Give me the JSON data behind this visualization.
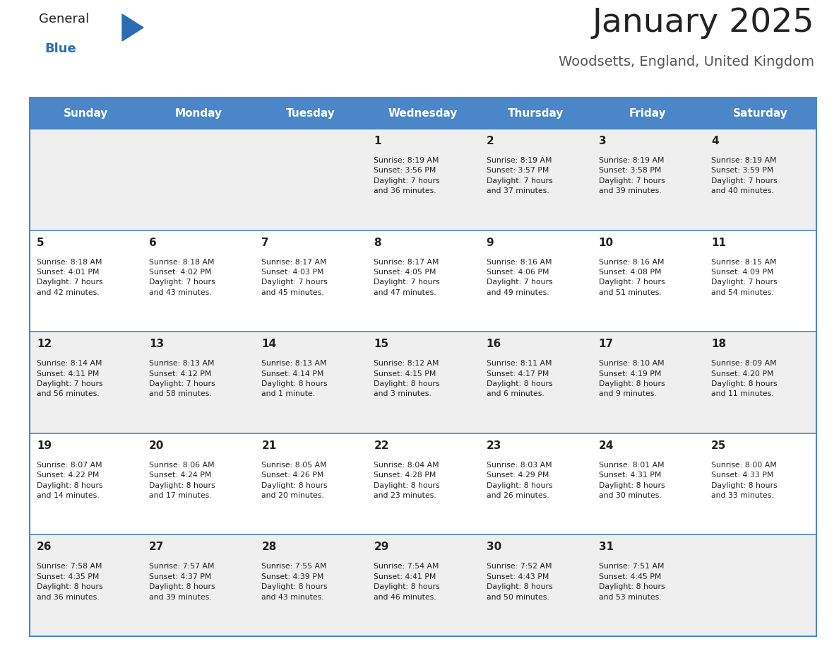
{
  "title": "January 2025",
  "subtitle": "Woodsetts, England, United Kingdom",
  "days_of_week": [
    "Sunday",
    "Monday",
    "Tuesday",
    "Wednesday",
    "Thursday",
    "Friday",
    "Saturday"
  ],
  "header_bg": "#4a86c8",
  "header_text": "#ffffff",
  "row_bg_odd": "#efefef",
  "row_bg_even": "#ffffff",
  "cell_text": "#222222",
  "border_color": "#4a86c8",
  "title_color": "#222222",
  "subtitle_color": "#555555",
  "logo_general_color": "#222222",
  "logo_blue_color": "#2a6db5",
  "weeks": [
    {
      "days": [
        {
          "date": "",
          "info": ""
        },
        {
          "date": "",
          "info": ""
        },
        {
          "date": "",
          "info": ""
        },
        {
          "date": "1",
          "info": "Sunrise: 8:19 AM\nSunset: 3:56 PM\nDaylight: 7 hours\nand 36 minutes."
        },
        {
          "date": "2",
          "info": "Sunrise: 8:19 AM\nSunset: 3:57 PM\nDaylight: 7 hours\nand 37 minutes."
        },
        {
          "date": "3",
          "info": "Sunrise: 8:19 AM\nSunset: 3:58 PM\nDaylight: 7 hours\nand 39 minutes."
        },
        {
          "date": "4",
          "info": "Sunrise: 8:19 AM\nSunset: 3:59 PM\nDaylight: 7 hours\nand 40 minutes."
        }
      ]
    },
    {
      "days": [
        {
          "date": "5",
          "info": "Sunrise: 8:18 AM\nSunset: 4:01 PM\nDaylight: 7 hours\nand 42 minutes."
        },
        {
          "date": "6",
          "info": "Sunrise: 8:18 AM\nSunset: 4:02 PM\nDaylight: 7 hours\nand 43 minutes."
        },
        {
          "date": "7",
          "info": "Sunrise: 8:17 AM\nSunset: 4:03 PM\nDaylight: 7 hours\nand 45 minutes."
        },
        {
          "date": "8",
          "info": "Sunrise: 8:17 AM\nSunset: 4:05 PM\nDaylight: 7 hours\nand 47 minutes."
        },
        {
          "date": "9",
          "info": "Sunrise: 8:16 AM\nSunset: 4:06 PM\nDaylight: 7 hours\nand 49 minutes."
        },
        {
          "date": "10",
          "info": "Sunrise: 8:16 AM\nSunset: 4:08 PM\nDaylight: 7 hours\nand 51 minutes."
        },
        {
          "date": "11",
          "info": "Sunrise: 8:15 AM\nSunset: 4:09 PM\nDaylight: 7 hours\nand 54 minutes."
        }
      ]
    },
    {
      "days": [
        {
          "date": "12",
          "info": "Sunrise: 8:14 AM\nSunset: 4:11 PM\nDaylight: 7 hours\nand 56 minutes."
        },
        {
          "date": "13",
          "info": "Sunrise: 8:13 AM\nSunset: 4:12 PM\nDaylight: 7 hours\nand 58 minutes."
        },
        {
          "date": "14",
          "info": "Sunrise: 8:13 AM\nSunset: 4:14 PM\nDaylight: 8 hours\nand 1 minute."
        },
        {
          "date": "15",
          "info": "Sunrise: 8:12 AM\nSunset: 4:15 PM\nDaylight: 8 hours\nand 3 minutes."
        },
        {
          "date": "16",
          "info": "Sunrise: 8:11 AM\nSunset: 4:17 PM\nDaylight: 8 hours\nand 6 minutes."
        },
        {
          "date": "17",
          "info": "Sunrise: 8:10 AM\nSunset: 4:19 PM\nDaylight: 8 hours\nand 9 minutes."
        },
        {
          "date": "18",
          "info": "Sunrise: 8:09 AM\nSunset: 4:20 PM\nDaylight: 8 hours\nand 11 minutes."
        }
      ]
    },
    {
      "days": [
        {
          "date": "19",
          "info": "Sunrise: 8:07 AM\nSunset: 4:22 PM\nDaylight: 8 hours\nand 14 minutes."
        },
        {
          "date": "20",
          "info": "Sunrise: 8:06 AM\nSunset: 4:24 PM\nDaylight: 8 hours\nand 17 minutes."
        },
        {
          "date": "21",
          "info": "Sunrise: 8:05 AM\nSunset: 4:26 PM\nDaylight: 8 hours\nand 20 minutes."
        },
        {
          "date": "22",
          "info": "Sunrise: 8:04 AM\nSunset: 4:28 PM\nDaylight: 8 hours\nand 23 minutes."
        },
        {
          "date": "23",
          "info": "Sunrise: 8:03 AM\nSunset: 4:29 PM\nDaylight: 8 hours\nand 26 minutes."
        },
        {
          "date": "24",
          "info": "Sunrise: 8:01 AM\nSunset: 4:31 PM\nDaylight: 8 hours\nand 30 minutes."
        },
        {
          "date": "25",
          "info": "Sunrise: 8:00 AM\nSunset: 4:33 PM\nDaylight: 8 hours\nand 33 minutes."
        }
      ]
    },
    {
      "days": [
        {
          "date": "26",
          "info": "Sunrise: 7:58 AM\nSunset: 4:35 PM\nDaylight: 8 hours\nand 36 minutes."
        },
        {
          "date": "27",
          "info": "Sunrise: 7:57 AM\nSunset: 4:37 PM\nDaylight: 8 hours\nand 39 minutes."
        },
        {
          "date": "28",
          "info": "Sunrise: 7:55 AM\nSunset: 4:39 PM\nDaylight: 8 hours\nand 43 minutes."
        },
        {
          "date": "29",
          "info": "Sunrise: 7:54 AM\nSunset: 4:41 PM\nDaylight: 8 hours\nand 46 minutes."
        },
        {
          "date": "30",
          "info": "Sunrise: 7:52 AM\nSunset: 4:43 PM\nDaylight: 8 hours\nand 50 minutes."
        },
        {
          "date": "31",
          "info": "Sunrise: 7:51 AM\nSunset: 4:45 PM\nDaylight: 8 hours\nand 53 minutes."
        },
        {
          "date": "",
          "info": ""
        }
      ]
    }
  ]
}
